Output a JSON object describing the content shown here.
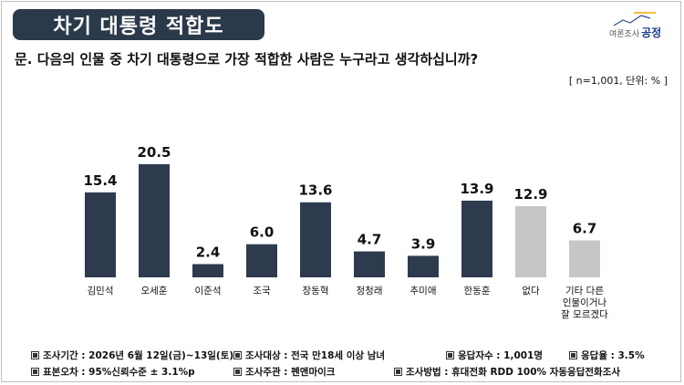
{
  "header": {
    "title": "차기 대통령 적합도",
    "logo_text": "여론조사",
    "logo_brand": "공정"
  },
  "question": "문. 다음의 인물 중 차기 대통령으로 가장 적합한 사람은 누구라고 생각하십니까?",
  "unit_note": "[ n=1,001, 단위: % ]",
  "chart_data": {
    "type": "bar",
    "categories": [
      "김민석",
      "오세훈",
      "이준석",
      "조국",
      "장동혁",
      "정청래",
      "추미애",
      "한동훈",
      "없다",
      [
        "기타 다른",
        "인물이거나",
        "잘 모르겠다"
      ]
    ],
    "values": [
      15.4,
      20.5,
      2.4,
      6.0,
      13.6,
      4.7,
      3.9,
      13.9,
      12.9,
      6.7
    ],
    "value_labels": [
      "15.4",
      "20.5",
      "2.4",
      "6.0",
      "13.6",
      "4.7",
      "3.9",
      "13.9",
      "12.9",
      "6.7"
    ],
    "colors": [
      "#2e3b4e",
      "#2e3b4e",
      "#2e3b4e",
      "#2e3b4e",
      "#2e3b4e",
      "#2e3b4e",
      "#2e3b4e",
      "#2e3b4e",
      "#c6c6c6",
      "#c6c6c6"
    ],
    "ylim": [
      0,
      20.5
    ],
    "grid": false,
    "title": "",
    "xlabel": "",
    "ylabel": ""
  },
  "footer": {
    "row1": [
      "조사기간 : 2026년 6월 12일(금)~13일(토)",
      "조사대상 : 전국 만18세 이상 남녀",
      "응답자수 : 1,001명",
      "응답율 : 3.5%"
    ],
    "row2": [
      "표본오차 : 95%신뢰수준 ± 3.1%p",
      "조사주관 : 펜앤마이크",
      "조사방법 : 휴대전화 RDD 100% 자동응답전화조사"
    ]
  }
}
